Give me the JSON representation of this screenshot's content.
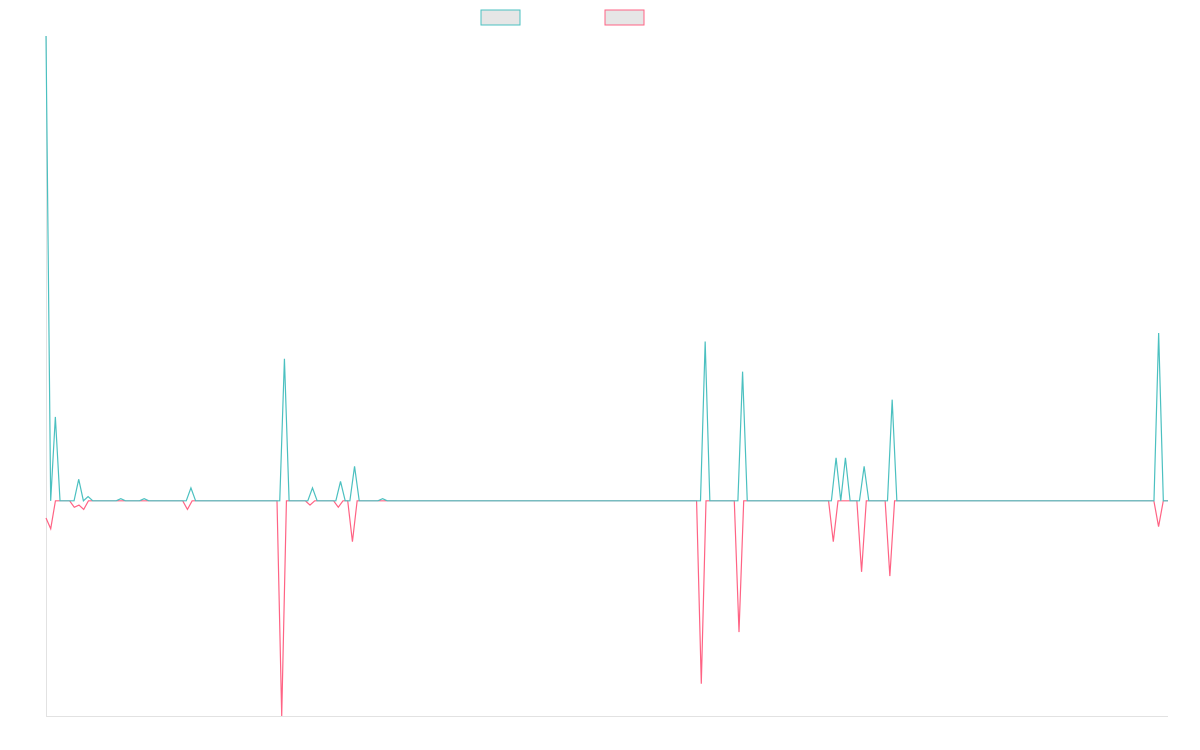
{
  "chart_data": {
    "type": "line",
    "title": "",
    "xlabel": "",
    "ylabel": "",
    "grid": false,
    "legend_position": "top-center",
    "ylim": [
      -100,
      216
    ],
    "series": [
      {
        "name": "",
        "color": "#4bc0c0",
        "fill": "#e6e6e6",
        "values": [
          216,
          0,
          39,
          0,
          0,
          0,
          0,
          10,
          0,
          2,
          0,
          0,
          0,
          0,
          0,
          0,
          1,
          0,
          0,
          0,
          0,
          1,
          0,
          0,
          0,
          0,
          0,
          0,
          0,
          0,
          0,
          6,
          0,
          0,
          0,
          0,
          0,
          0,
          0,
          0,
          0,
          0,
          0,
          0,
          0,
          0,
          0,
          0,
          0,
          0,
          0,
          66,
          0,
          0,
          0,
          0,
          0,
          6,
          0,
          0,
          0,
          0,
          0,
          9,
          0,
          0,
          16,
          0,
          0,
          0,
          0,
          0,
          1,
          0,
          0,
          0,
          0,
          0,
          0,
          0,
          0,
          0,
          0,
          0,
          0,
          0,
          0,
          0,
          0,
          0,
          0,
          0,
          0,
          0,
          0,
          0,
          0,
          0,
          0,
          0,
          0,
          0,
          0,
          0,
          0,
          0,
          0,
          0,
          0,
          0,
          0,
          0,
          0,
          0,
          0,
          0,
          0,
          0,
          0,
          0,
          0,
          0,
          0,
          0,
          0,
          0,
          0,
          0,
          0,
          0,
          0,
          0,
          0,
          0,
          0,
          0,
          0,
          0,
          0,
          0,
          0,
          74,
          0,
          0,
          0,
          0,
          0,
          0,
          0,
          60,
          0,
          0,
          0,
          0,
          0,
          0,
          0,
          0,
          0,
          0,
          0,
          0,
          0,
          0,
          0,
          0,
          0,
          0,
          0,
          20,
          0,
          20,
          0,
          0,
          0,
          16,
          0,
          0,
          0,
          0,
          0,
          47,
          0,
          0,
          0,
          0,
          0,
          0,
          0,
          0,
          0,
          0,
          0,
          0,
          0,
          0,
          0,
          0,
          0,
          0,
          0,
          0,
          0,
          0,
          0,
          0,
          0,
          0,
          0,
          0,
          0,
          0,
          0,
          0,
          0,
          0,
          0,
          0,
          0,
          0,
          0,
          0,
          0,
          0,
          0,
          0,
          0,
          0,
          0,
          0,
          0,
          0,
          0,
          0,
          0,
          0,
          0,
          0,
          78,
          0,
          0
        ]
      },
      {
        "name": "",
        "color": "#ff6384",
        "fill": "#e6e6e6",
        "values": [
          -8,
          -13,
          0,
          0,
          0,
          0,
          -3,
          -2,
          -4,
          0,
          0,
          0,
          0,
          0,
          0,
          0,
          0,
          0,
          0,
          0,
          0,
          0,
          0,
          0,
          0,
          0,
          0,
          0,
          0,
          0,
          -4,
          0,
          0,
          0,
          0,
          0,
          0,
          0,
          0,
          0,
          0,
          0,
          0,
          0,
          0,
          0,
          0,
          0,
          0,
          0,
          -100,
          0,
          0,
          0,
          0,
          0,
          -2,
          0,
          0,
          0,
          0,
          0,
          -3,
          0,
          0,
          -19,
          0,
          0,
          0,
          0,
          0,
          0,
          0,
          0,
          0,
          0,
          0,
          0,
          0,
          0,
          0,
          0,
          0,
          0,
          0,
          0,
          0,
          0,
          0,
          0,
          0,
          0,
          0,
          0,
          0,
          0,
          0,
          0,
          0,
          0,
          0,
          0,
          0,
          0,
          0,
          0,
          0,
          0,
          0,
          0,
          0,
          0,
          0,
          0,
          0,
          0,
          0,
          0,
          0,
          0,
          0,
          0,
          0,
          0,
          0,
          0,
          0,
          0,
          0,
          0,
          0,
          0,
          0,
          0,
          0,
          0,
          0,
          0,
          0,
          -85,
          0,
          0,
          0,
          0,
          0,
          0,
          0,
          -61,
          0,
          0,
          0,
          0,
          0,
          0,
          0,
          0,
          0,
          0,
          0,
          0,
          0,
          0,
          0,
          0,
          0,
          0,
          0,
          -19,
          0,
          0,
          0,
          0,
          0,
          -33,
          0,
          0,
          0,
          0,
          0,
          -35,
          0,
          0,
          0,
          0,
          0,
          0,
          0,
          0,
          0,
          0,
          0,
          0,
          0,
          0,
          0,
          0,
          0,
          0,
          0,
          0,
          0,
          0,
          0,
          0,
          0,
          0,
          0,
          0,
          0,
          0,
          0,
          0,
          0,
          0,
          0,
          0,
          0,
          0,
          0,
          0,
          0,
          0,
          0,
          0,
          0,
          0,
          0,
          0,
          0,
          0,
          0,
          0,
          0,
          0,
          0,
          0,
          -12,
          0,
          0
        ]
      }
    ]
  }
}
